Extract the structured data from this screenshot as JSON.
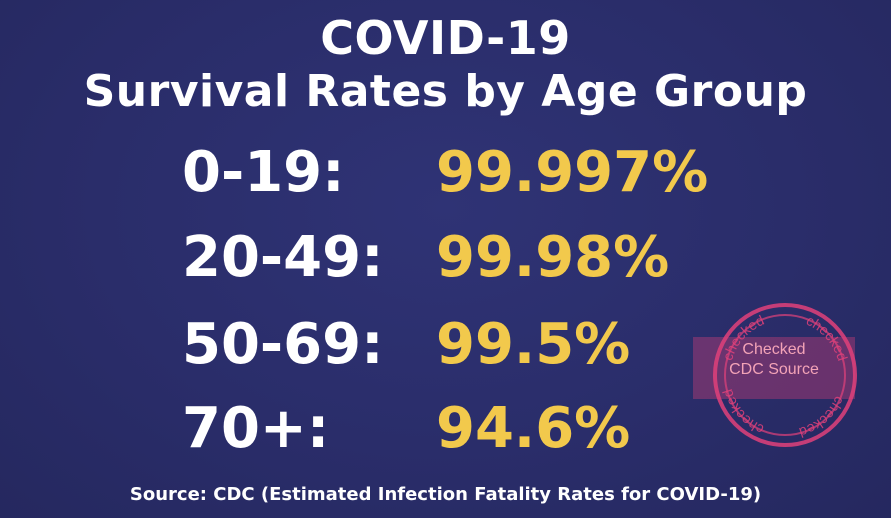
{
  "title": {
    "line1": "COVID-19",
    "line2": "Survival Rates by Age Group"
  },
  "rows": [
    {
      "age": "0-19:",
      "rate": "99.997%"
    },
    {
      "age": "20-49:",
      "rate": "99.98%"
    },
    {
      "age": "50-69:",
      "rate": "99.5%"
    },
    {
      "age": "70+:",
      "rate": "94.6%"
    }
  ],
  "source": "Source: CDC (Estimated Infection Fatality Rates for COVID-19)",
  "stamp": {
    "line1": "Checked",
    "line2": "CDC Source",
    "ring_text": "checked",
    "color": "#e1417a"
  },
  "colors": {
    "background": "#2a2d6a",
    "title": "#ffffff",
    "age": "#ffffff",
    "rate": "#f2c94c"
  }
}
